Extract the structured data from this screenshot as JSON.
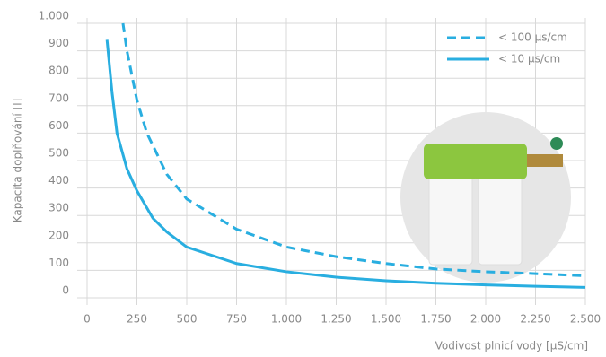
{
  "chart_data": {
    "type": "line",
    "y_label": "Kapacita doplňování [l]",
    "x_label": "Vodivost plnicí vody [µS/cm]",
    "xlim": [
      0,
      2500
    ],
    "ylim": [
      0,
      1000
    ],
    "grid": true,
    "legend": "top-right",
    "xticks": [
      0,
      250,
      500,
      750,
      {
        "value": 1000,
        "label": "1.000"
      },
      {
        "value": 1250,
        "label": "1.250"
      },
      {
        "value": 1500,
        "label": "1.500"
      },
      {
        "value": 1750,
        "label": "1.750"
      },
      {
        "value": 2000,
        "label": "2.000"
      },
      {
        "value": 2250,
        "label": "2.250"
      },
      {
        "value": 2500,
        "label": "2.500"
      }
    ],
    "yticks": [
      0,
      100,
      200,
      300,
      400,
      500,
      600,
      700,
      800,
      900,
      {
        "value": 1000,
        "label": "1.000"
      }
    ],
    "series": [
      {
        "name": "< 100 µs/cm",
        "color": "#29aee0",
        "line_style": "dashed",
        "x": [
          180,
          200,
          250,
          300,
          400,
          500,
          750,
          1000,
          1250,
          1500,
          1750,
          2000,
          2250,
          2500
        ],
        "values": [
          1000,
          900,
          720,
          600,
          450,
          360,
          250,
          185,
          150,
          125,
          105,
          95,
          88,
          80
        ]
      },
      {
        "name": "< 10 µs/cm",
        "color": "#29aee0",
        "line_style": "solid",
        "x": [
          100,
          125,
          150,
          200,
          250,
          330,
          400,
          500,
          750,
          1000,
          1250,
          1500,
          1750,
          2000,
          2250,
          2500
        ],
        "values": [
          940,
          750,
          600,
          470,
          390,
          290,
          240,
          185,
          125,
          95,
          75,
          62,
          53,
          47,
          42,
          38
        ]
      }
    ]
  }
}
